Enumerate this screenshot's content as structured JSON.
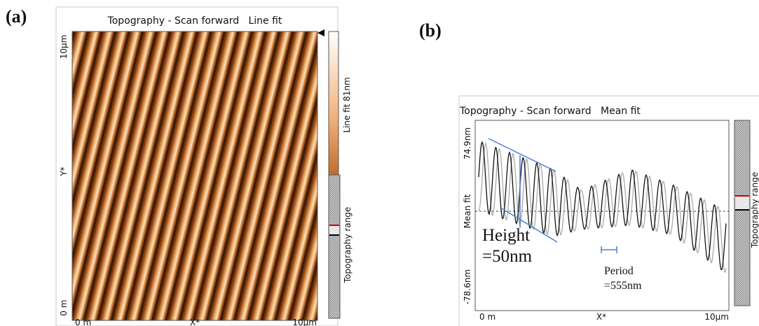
{
  "panel_a": {
    "label": "(a)",
    "title": "Topography - Scan forward   Line fit",
    "y_axis": {
      "top": "10µm",
      "label": "Y*",
      "bottom": "0 m"
    },
    "x_axis": {
      "left": "0 m",
      "label": "X*",
      "right": "10µm"
    },
    "colorbar_label": "Line fit 81nm",
    "range_label": "Topography range"
  },
  "panel_b": {
    "label": "(b)",
    "title": "Topography - Scan forward   Mean fit",
    "y_axis": {
      "top": "74.9nm",
      "label": "Mean fit",
      "bottom": "-78.6nm"
    },
    "x_axis": {
      "left": "0 m",
      "label": "X*",
      "right": "10µm"
    },
    "height_annotation": {
      "line1": "Height",
      "line2": "=50nm"
    },
    "period_annotation": {
      "line1": "Period",
      "line2": "=555nm"
    },
    "range_label": "Topography range"
  }
}
